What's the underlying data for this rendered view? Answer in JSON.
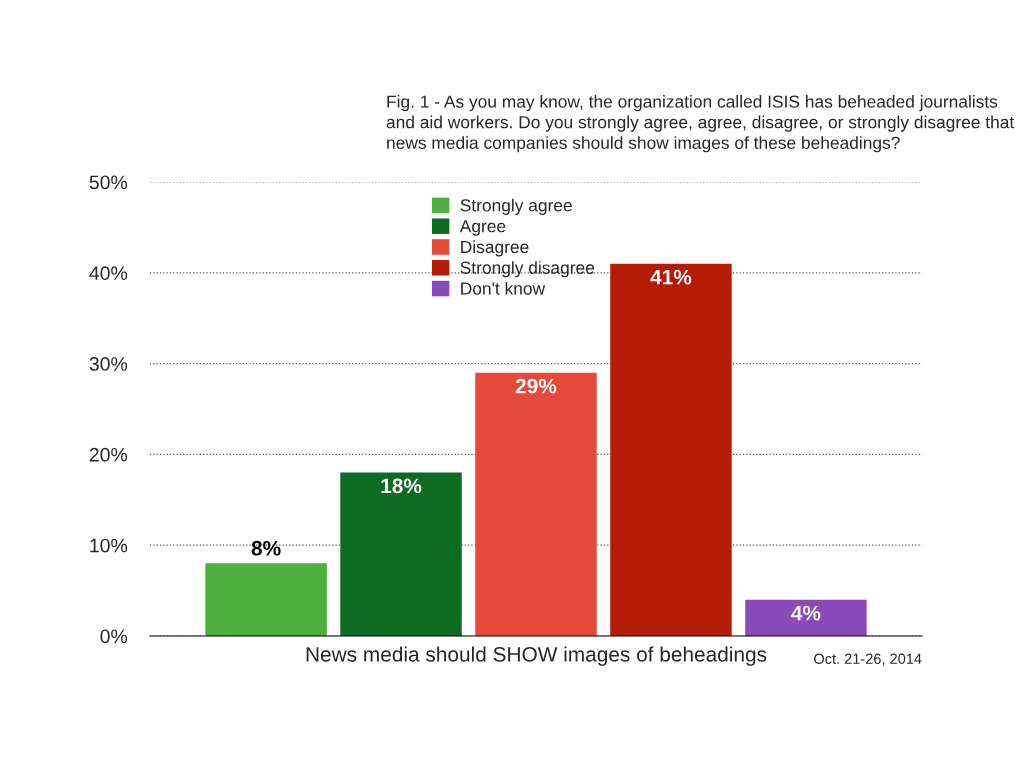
{
  "chart_data": {
    "type": "bar",
    "title": "Fig. 1 - As you may know, the organization called ISIS has beheaded journalists and aid workers. Do you strongly agree, agree, disagree, or strongly disagree that news media companies should show images of these beheadings?",
    "xlabel": "News media should SHOW images of beheadings",
    "annotations": [
      "Oct. 21-26, 2014"
    ],
    "categories": [
      null,
      null,
      null,
      null,
      null
    ],
    "series": [
      {
        "name": "Strongly agree",
        "color": "#4caf3e",
        "values": [
          8,
          null,
          null,
          null,
          null
        ],
        "value_labels": [
          "8%",
          null,
          null,
          null,
          null
        ]
      },
      {
        "name": "Agree",
        "color": "#0d6b22",
        "values": [
          null,
          18,
          null,
          null,
          null
        ],
        "value_labels": [
          null,
          "18%",
          null,
          null,
          null
        ]
      },
      {
        "name": "Disagree",
        "color": "#e5493a",
        "values": [
          null,
          null,
          29,
          null,
          null
        ],
        "value_labels": [
          null,
          null,
          "29%",
          null,
          null
        ]
      },
      {
        "name": "Strongly disagree",
        "color": "#b51c08",
        "values": [
          null,
          null,
          null,
          41,
          null
        ],
        "value_labels": [
          null,
          null,
          null,
          "41%",
          null
        ]
      },
      {
        "name": "Don't know",
        "color": "#8a4ab8",
        "values": [
          null,
          null,
          null,
          null,
          4
        ],
        "value_labels": [
          null,
          null,
          null,
          null,
          "4%"
        ]
      }
    ],
    "ylim": [
      0,
      50
    ],
    "yticks": [
      {
        "value": 0,
        "label": "0%"
      },
      {
        "value": 10,
        "label": "10%"
      },
      {
        "value": 20,
        "label": "20%"
      },
      {
        "value": 30,
        "label": "30%"
      },
      {
        "value": 40,
        "label": "40%"
      },
      {
        "value": 50,
        "label": "50%"
      }
    ],
    "grid": "y",
    "legend": "top"
  }
}
